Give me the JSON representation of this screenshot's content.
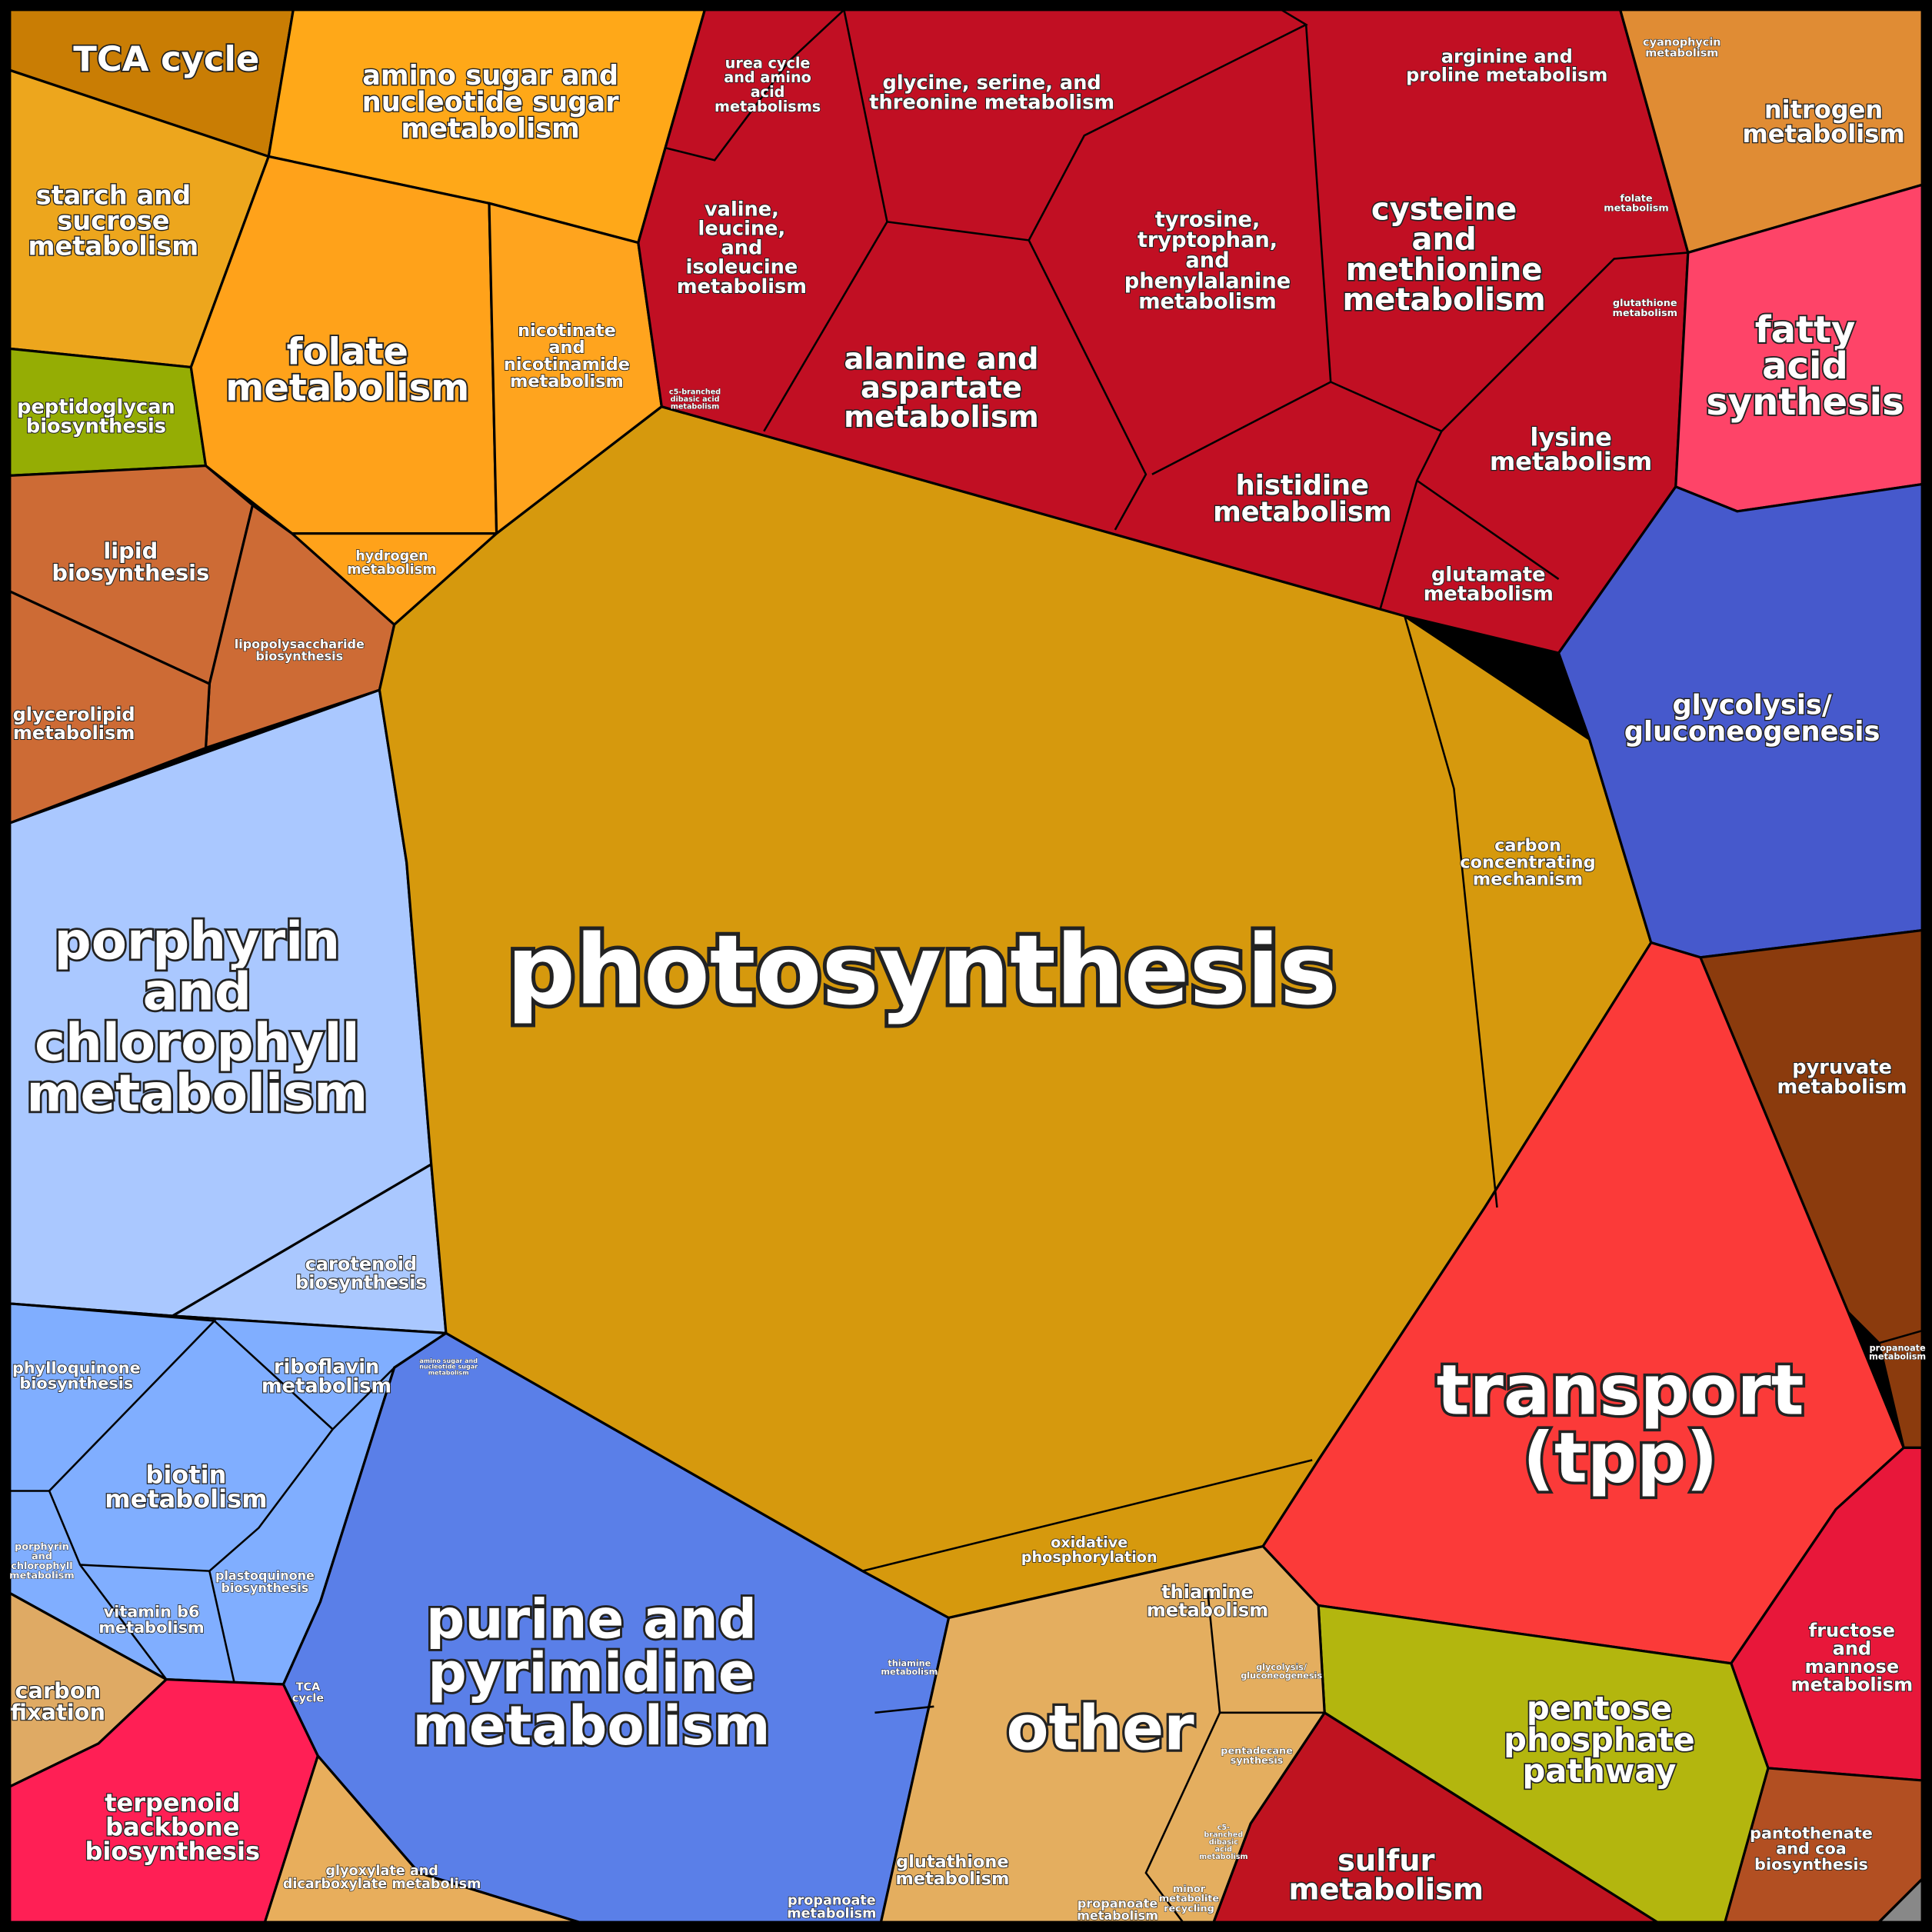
{
  "regions": [
    {
      "lines": [
        "TCA cycle"
      ]
    },
    {
      "lines": [
        "amino sugar and",
        "nucleotide sugar",
        "metabolism"
      ]
    },
    {
      "lines": [
        "starch and",
        "sucrose",
        "metabolism"
      ]
    },
    {
      "lines": [
        "peptidoglycan",
        "biosynthesis"
      ]
    },
    {
      "lines": [
        "folate",
        "metabolism"
      ]
    },
    {
      "lines": [
        "nicotinate",
        "and",
        "nicotinamide",
        "metabolism"
      ]
    },
    {
      "lines": [
        "hydrogen",
        "metabolism"
      ]
    },
    {
      "lines": [
        "lipid",
        "biosynthesis"
      ]
    },
    {
      "lines": [
        "lipopolysaccharide",
        "biosynthesis"
      ]
    },
    {
      "lines": [
        "glycerolipid",
        "metabolism"
      ]
    },
    {
      "lines": [
        "porphyrin",
        "and",
        "chlorophyll",
        "metabolism"
      ]
    },
    {
      "lines": [
        "carotenoid",
        "biosynthesis"
      ]
    },
    {
      "lines": [
        "phylloquinone",
        "biosynthesis"
      ]
    },
    {
      "lines": [
        "riboflavin",
        "metabolism"
      ]
    },
    {
      "lines": [
        "biotin",
        "metabolism"
      ]
    },
    {
      "lines": [
        "porphyrin",
        "and",
        "chlorophyll",
        "metabolism"
      ]
    },
    {
      "lines": [
        "plastoquinone",
        "biosynthesis"
      ]
    },
    {
      "lines": [
        "vitamin b6",
        "metabolism"
      ]
    },
    {
      "lines": [
        "carbon",
        "fixation"
      ]
    },
    {
      "lines": [
        "terpenoid",
        "backbone",
        "biosynthesis"
      ]
    },
    {
      "lines": [
        "glyoxylate and",
        "dicarboxylate metabolism"
      ]
    },
    {
      "lines": [
        "TCA",
        "cycle"
      ]
    },
    {
      "lines": [
        "amino sugar and",
        "nucleotide sugar",
        "metabolism"
      ]
    },
    {
      "lines": [
        "purine and",
        "pyrimidine",
        "metabolism"
      ]
    },
    {
      "lines": [
        "thiamine",
        "metabolism"
      ]
    },
    {
      "lines": [
        "propanoate",
        "metabolism"
      ]
    },
    {
      "lines": [
        "photosynthesis"
      ]
    },
    {
      "lines": [
        "carbon",
        "concentrating",
        "mechanism"
      ]
    },
    {
      "lines": [
        "oxidative",
        "phosphorylation"
      ]
    },
    {
      "lines": [
        "urea cycle",
        "and amino",
        "acid",
        "metabolisms"
      ]
    },
    {
      "lines": [
        "glycine, serine, and",
        "threonine metabolism"
      ]
    },
    {
      "lines": [
        "arginine and",
        "proline metabolism"
      ]
    },
    {
      "lines": [
        "valine,",
        "leucine,",
        "and",
        "isoleucine",
        "metabolism"
      ]
    },
    {
      "lines": [
        "tyrosine,",
        "tryptophan,",
        "and",
        "phenylalanine",
        "metabolism"
      ]
    },
    {
      "lines": [
        "cysteine",
        "and",
        "methionine",
        "metabolism"
      ]
    },
    {
      "lines": [
        "folate",
        "metabolism"
      ]
    },
    {
      "lines": [
        "glutathione",
        "metabolism"
      ]
    },
    {
      "lines": [
        "c5-branched",
        "dibasic acid",
        "metabolism"
      ]
    },
    {
      "lines": [
        "alanine and",
        "aspartate",
        "metabolism"
      ]
    },
    {
      "lines": [
        "lysine",
        "metabolism"
      ]
    },
    {
      "lines": [
        "histidine",
        "metabolism"
      ]
    },
    {
      "lines": [
        "glutamate",
        "metabolism"
      ]
    },
    {
      "lines": [
        "cyanophycin",
        "metabolism"
      ]
    },
    {
      "lines": [
        "nitrogen",
        "metabolism"
      ]
    },
    {
      "lines": [
        "fatty",
        "acid",
        "synthesis"
      ]
    },
    {
      "lines": [
        "glycolysis/",
        "gluconeogenesis"
      ]
    },
    {
      "lines": [
        "pyruvate",
        "metabolism"
      ]
    },
    {
      "lines": [
        "propanoate",
        "metabolism"
      ]
    },
    {
      "lines": [
        "transport",
        "(tpp)"
      ]
    },
    {
      "lines": [
        "fructose",
        "and",
        "mannose",
        "metabolism"
      ]
    },
    {
      "lines": [
        "pantothenate",
        "and coa",
        "biosynthesis"
      ]
    },
    {
      "lines": [
        "pentose",
        "phosphate",
        "pathway"
      ]
    },
    {
      "lines": [
        "sulfur",
        "metabolism"
      ]
    },
    {
      "lines": [
        "other"
      ]
    },
    {
      "lines": [
        "thiamine",
        "metabolism"
      ]
    },
    {
      "lines": [
        "glycolysis/",
        "gluconeogenesis"
      ]
    },
    {
      "lines": [
        "pentadecane",
        "synthesis"
      ]
    },
    {
      "lines": [
        "c5-",
        "branched",
        "dibasic",
        "acid",
        "metabolism"
      ]
    },
    {
      "lines": [
        "minor",
        "metabolite",
        "recycling"
      ]
    },
    {
      "lines": [
        "propanoate",
        "metabolism"
      ]
    },
    {
      "lines": [
        "glutathione",
        "metabolism"
      ]
    }
  ]
}
